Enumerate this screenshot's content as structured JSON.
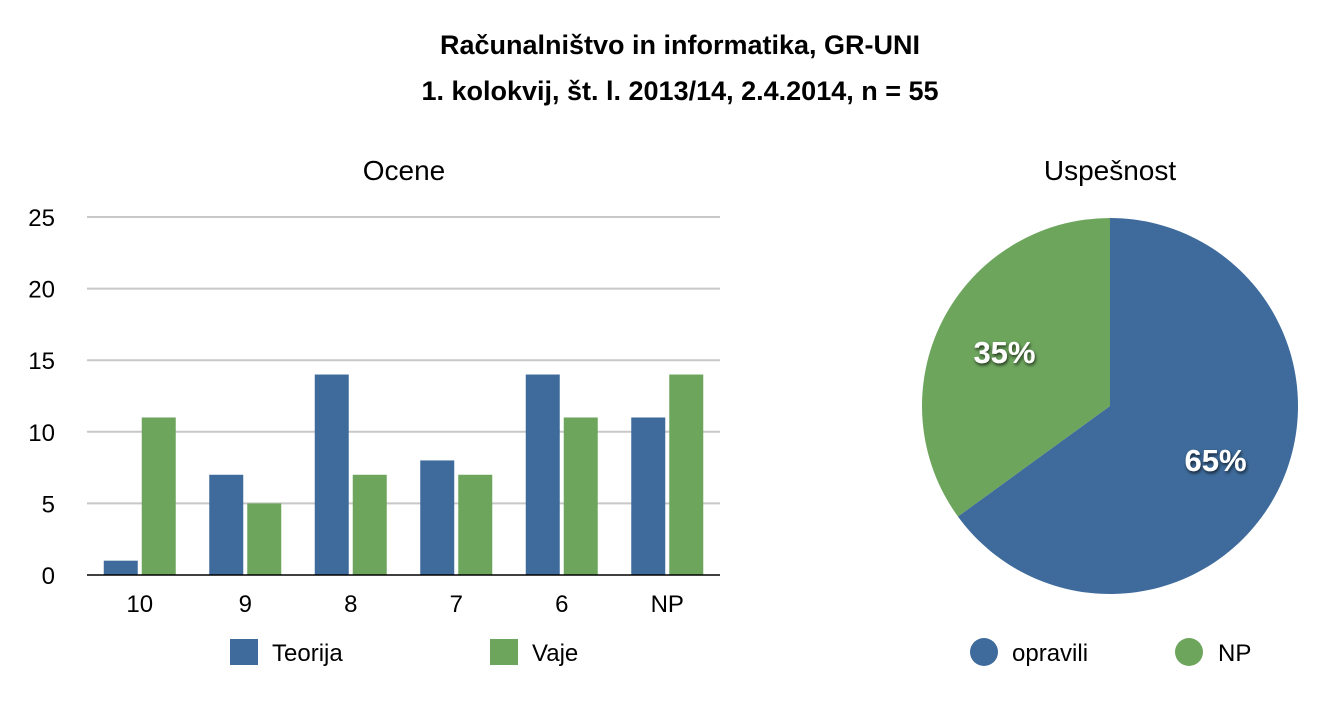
{
  "title": {
    "line1": "Računalništvo in informatika, GR-UNI",
    "line2": "1. kolokvij, št. l. 2013/14, 2.4.2014, n = 55"
  },
  "colors": {
    "blue": "#3e6b9b",
    "green": "#6da55d",
    "grid": "#c8c8c8",
    "axis": "#000000"
  },
  "chart_data": [
    {
      "type": "bar",
      "title": "Ocene",
      "categories": [
        "10",
        "9",
        "8",
        "7",
        "6",
        "NP"
      ],
      "series": [
        {
          "name": "Teorija",
          "color": "#3e6b9b",
          "values": [
            1,
            7,
            14,
            8,
            14,
            11
          ]
        },
        {
          "name": "Vaje",
          "color": "#6da55d",
          "values": [
            11,
            5,
            7,
            7,
            11,
            14
          ]
        }
      ],
      "ylim": [
        0,
        25
      ],
      "yticks": [
        0,
        5,
        10,
        15,
        20,
        25
      ],
      "grid": true,
      "legend": "bottom"
    },
    {
      "type": "pie",
      "title": "Uspešnost",
      "labels": [
        "opravili",
        "NP"
      ],
      "values": [
        65,
        35
      ],
      "value_labels": [
        "65%",
        "35%"
      ],
      "colors": [
        "#3e6b9b",
        "#6da55d"
      ],
      "legend": "bottom"
    }
  ]
}
